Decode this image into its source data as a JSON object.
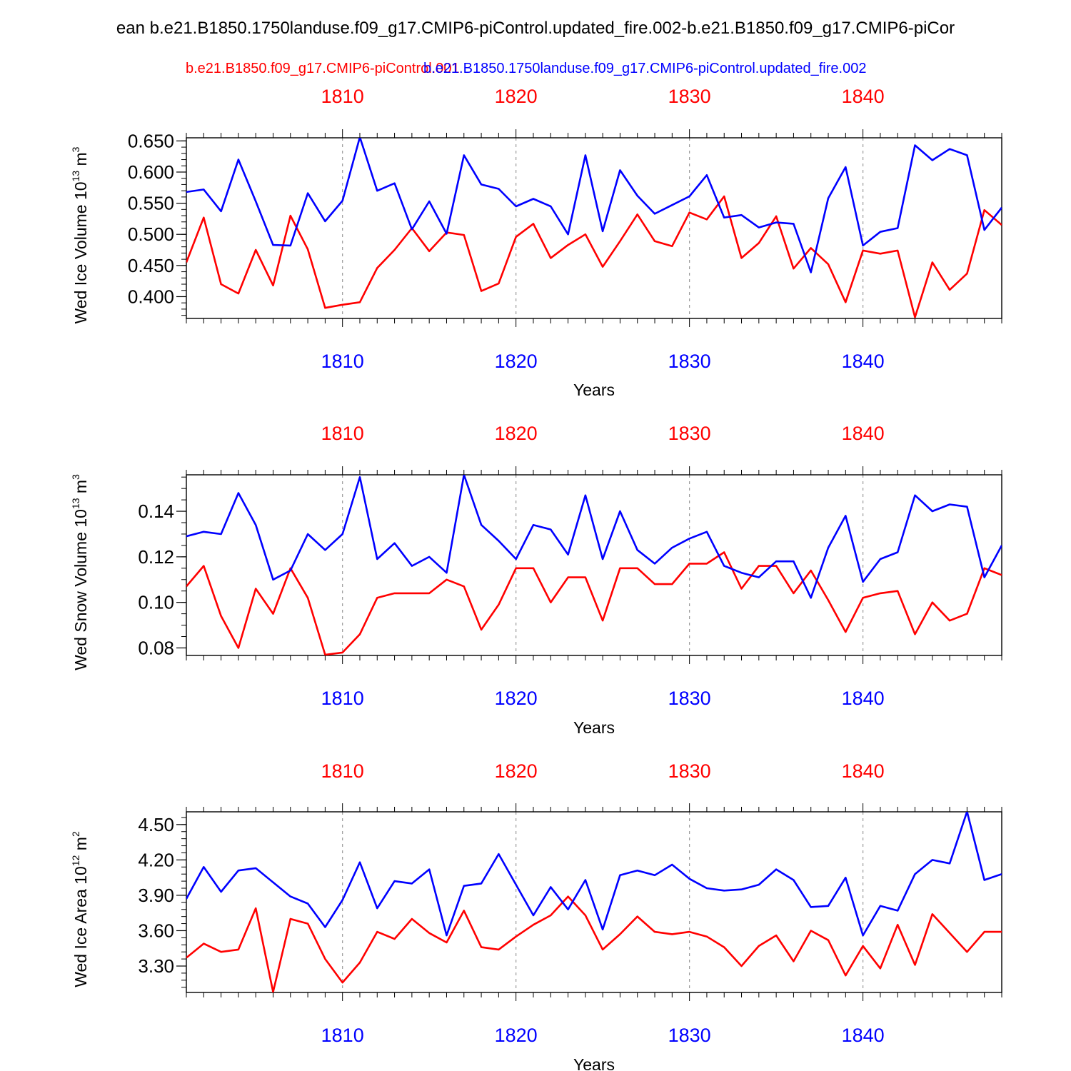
{
  "header": {
    "title": "ean b.e21.B1850.1750landuse.f09_g17.CMIP6-piControl.updated_fire.002-b.e21.B1850.f09_g17.CMIP6-piCor",
    "legend_red": "b.e21.B1850.f09_g17.CMIP6-piControl.001",
    "legend_blue": "b.e21.B1850.1750landuse.f09_g17.CMIP6-piControl.updated_fire.002"
  },
  "colors": {
    "red": "#ff0000",
    "blue": "#0000ff"
  },
  "chart_data": [
    {
      "type": "line",
      "ylabel": "Wed Ice Volume",
      "yunits": "10^13 m^3",
      "yunit_base": "10",
      "yunit_exp": "13",
      "yunit_sym": "m",
      "yunit_pow": "3",
      "xlabel": "Years",
      "top_ticks": [
        "1810",
        "1820",
        "1830",
        "1840"
      ],
      "bottom_ticks": [
        "1810",
        "1820",
        "1830",
        "1840"
      ],
      "xlim": [
        1801,
        1848
      ],
      "ylim": [
        0.365,
        0.655
      ],
      "yticks": [
        0.4,
        0.45,
        0.5,
        0.55,
        0.6,
        0.65
      ],
      "ytick_labels": [
        "0.400",
        "0.450",
        "0.500",
        "0.550",
        "0.600",
        "0.650"
      ],
      "yminor_step": 0.01,
      "x_start": 1801,
      "series": [
        {
          "name": "b.e21.B1850.f09_g17.CMIP6-piControl.001",
          "color": "red",
          "values": [
            0.455,
            0.527,
            0.42,
            0.405,
            0.475,
            0.418,
            0.53,
            0.476,
            0.382,
            0.387,
            0.391,
            0.446,
            0.475,
            0.51,
            0.473,
            0.503,
            0.499,
            0.409,
            0.421,
            0.496,
            0.517,
            0.462,
            0.483,
            0.5,
            0.448,
            0.489,
            0.532,
            0.489,
            0.481,
            0.535,
            0.524,
            0.561,
            0.462,
            0.486,
            0.529,
            0.445,
            0.478,
            0.452,
            0.391,
            0.474,
            0.469,
            0.474,
            0.367,
            0.455,
            0.411,
            0.437,
            0.539,
            0.515
          ]
        },
        {
          "name": "b.e21.B1850.1750landuse.f09_g17.CMIP6-piControl.updated_fire.002",
          "color": "blue",
          "values": [
            0.568,
            0.572,
            0.537,
            0.62,
            0.553,
            0.483,
            0.482,
            0.566,
            0.521,
            0.554,
            0.656,
            0.57,
            0.582,
            0.508,
            0.553,
            0.501,
            0.627,
            0.58,
            0.573,
            0.545,
            0.557,
            0.545,
            0.5,
            0.627,
            0.505,
            0.603,
            0.562,
            0.533,
            0.547,
            0.561,
            0.595,
            0.527,
            0.531,
            0.511,
            0.519,
            0.517,
            0.439,
            0.558,
            0.608,
            0.482,
            0.504,
            0.51,
            0.643,
            0.619,
            0.637,
            0.627,
            0.507,
            0.543
          ]
        }
      ]
    },
    {
      "type": "line",
      "ylabel": "Wed Snow Volume",
      "yunits": "10^13 m^3",
      "yunit_base": "10",
      "yunit_exp": "13",
      "yunit_sym": "m",
      "yunit_pow": "3",
      "xlabel": "Years",
      "top_ticks": [
        "1810",
        "1820",
        "1830",
        "1840"
      ],
      "bottom_ticks": [
        "1810",
        "1820",
        "1830",
        "1840"
      ],
      "xlim": [
        1801,
        1848
      ],
      "ylim": [
        0.0767,
        0.156
      ],
      "yticks": [
        0.08,
        0.1,
        0.12,
        0.14
      ],
      "ytick_labels": [
        "0.08",
        "0.10",
        "0.12",
        "0.14"
      ],
      "yminor_step": 0.005,
      "x_start": 1801,
      "series": [
        {
          "name": "b.e21.B1850.f09_g17.CMIP6-piControl.001",
          "color": "red",
          "values": [
            0.107,
            0.116,
            0.094,
            0.08,
            0.106,
            0.095,
            0.115,
            0.102,
            0.077,
            0.078,
            0.086,
            0.102,
            0.104,
            0.104,
            0.104,
            0.11,
            0.107,
            0.088,
            0.099,
            0.115,
            0.115,
            0.1,
            0.111,
            0.111,
            0.092,
            0.115,
            0.115,
            0.108,
            0.108,
            0.117,
            0.117,
            0.122,
            0.106,
            0.116,
            0.116,
            0.104,
            0.114,
            0.101,
            0.087,
            0.102,
            0.104,
            0.105,
            0.086,
            0.1,
            0.092,
            0.095,
            0.115,
            0.112
          ]
        },
        {
          "name": "b.e21.B1850.1750landuse.f09_g17.CMIP6-piControl.updated_fire.002",
          "color": "blue",
          "values": [
            0.129,
            0.131,
            0.13,
            0.148,
            0.134,
            0.11,
            0.114,
            0.13,
            0.123,
            0.13,
            0.155,
            0.119,
            0.126,
            0.116,
            0.12,
            0.113,
            0.156,
            0.134,
            0.127,
            0.119,
            0.134,
            0.132,
            0.121,
            0.147,
            0.119,
            0.14,
            0.123,
            0.117,
            0.124,
            0.128,
            0.131,
            0.116,
            0.113,
            0.111,
            0.118,
            0.118,
            0.102,
            0.124,
            0.138,
            0.109,
            0.119,
            0.122,
            0.147,
            0.14,
            0.143,
            0.142,
            0.111,
            0.125
          ]
        }
      ]
    },
    {
      "type": "line",
      "ylabel": "Wed Ice Area",
      "yunits": "10^12 m^2",
      "yunit_base": "10",
      "yunit_exp": "12",
      "yunit_sym": "m",
      "yunit_pow": "2",
      "xlabel": "Years",
      "top_ticks": [
        "1810",
        "1820",
        "1830",
        "1840"
      ],
      "bottom_ticks": [
        "1810",
        "1820",
        "1830",
        "1840"
      ],
      "xlim": [
        1801,
        1848
      ],
      "ylim": [
        3.076,
        4.608
      ],
      "yticks": [
        3.3,
        3.6,
        3.9,
        4.2,
        4.5
      ],
      "ytick_labels": [
        "3.30",
        "3.60",
        "3.90",
        "4.20",
        "4.50"
      ],
      "yminor_step": 0.06,
      "x_start": 1801,
      "series": [
        {
          "name": "b.e21.B1850.f09_g17.CMIP6-piControl.001",
          "color": "red",
          "values": [
            3.37,
            3.49,
            3.42,
            3.44,
            3.79,
            3.08,
            3.7,
            3.66,
            3.36,
            3.16,
            3.33,
            3.59,
            3.53,
            3.7,
            3.58,
            3.5,
            3.77,
            3.46,
            3.44,
            3.55,
            3.65,
            3.73,
            3.89,
            3.73,
            3.44,
            3.57,
            3.72,
            3.59,
            3.57,
            3.59,
            3.55,
            3.46,
            3.3,
            3.47,
            3.56,
            3.34,
            3.6,
            3.52,
            3.22,
            3.47,
            3.28,
            3.65,
            3.31,
            3.74,
            3.58,
            3.42,
            3.59,
            3.59
          ]
        },
        {
          "name": "b.e21.B1850.1750landuse.f09_g17.CMIP6-piControl.updated_fire.002",
          "color": "blue",
          "values": [
            3.87,
            4.14,
            3.93,
            4.11,
            4.13,
            4.01,
            3.89,
            3.83,
            3.63,
            3.86,
            4.18,
            3.79,
            4.02,
            4.0,
            4.12,
            3.56,
            3.98,
            4.0,
            4.25,
            3.99,
            3.73,
            3.97,
            3.78,
            4.03,
            3.61,
            4.07,
            4.11,
            4.07,
            4.16,
            4.04,
            3.96,
            3.94,
            3.95,
            3.99,
            4.12,
            4.03,
            3.8,
            3.81,
            4.05,
            3.56,
            3.81,
            3.77,
            4.08,
            4.2,
            4.17,
            4.61,
            4.03,
            4.08
          ]
        }
      ]
    }
  ]
}
